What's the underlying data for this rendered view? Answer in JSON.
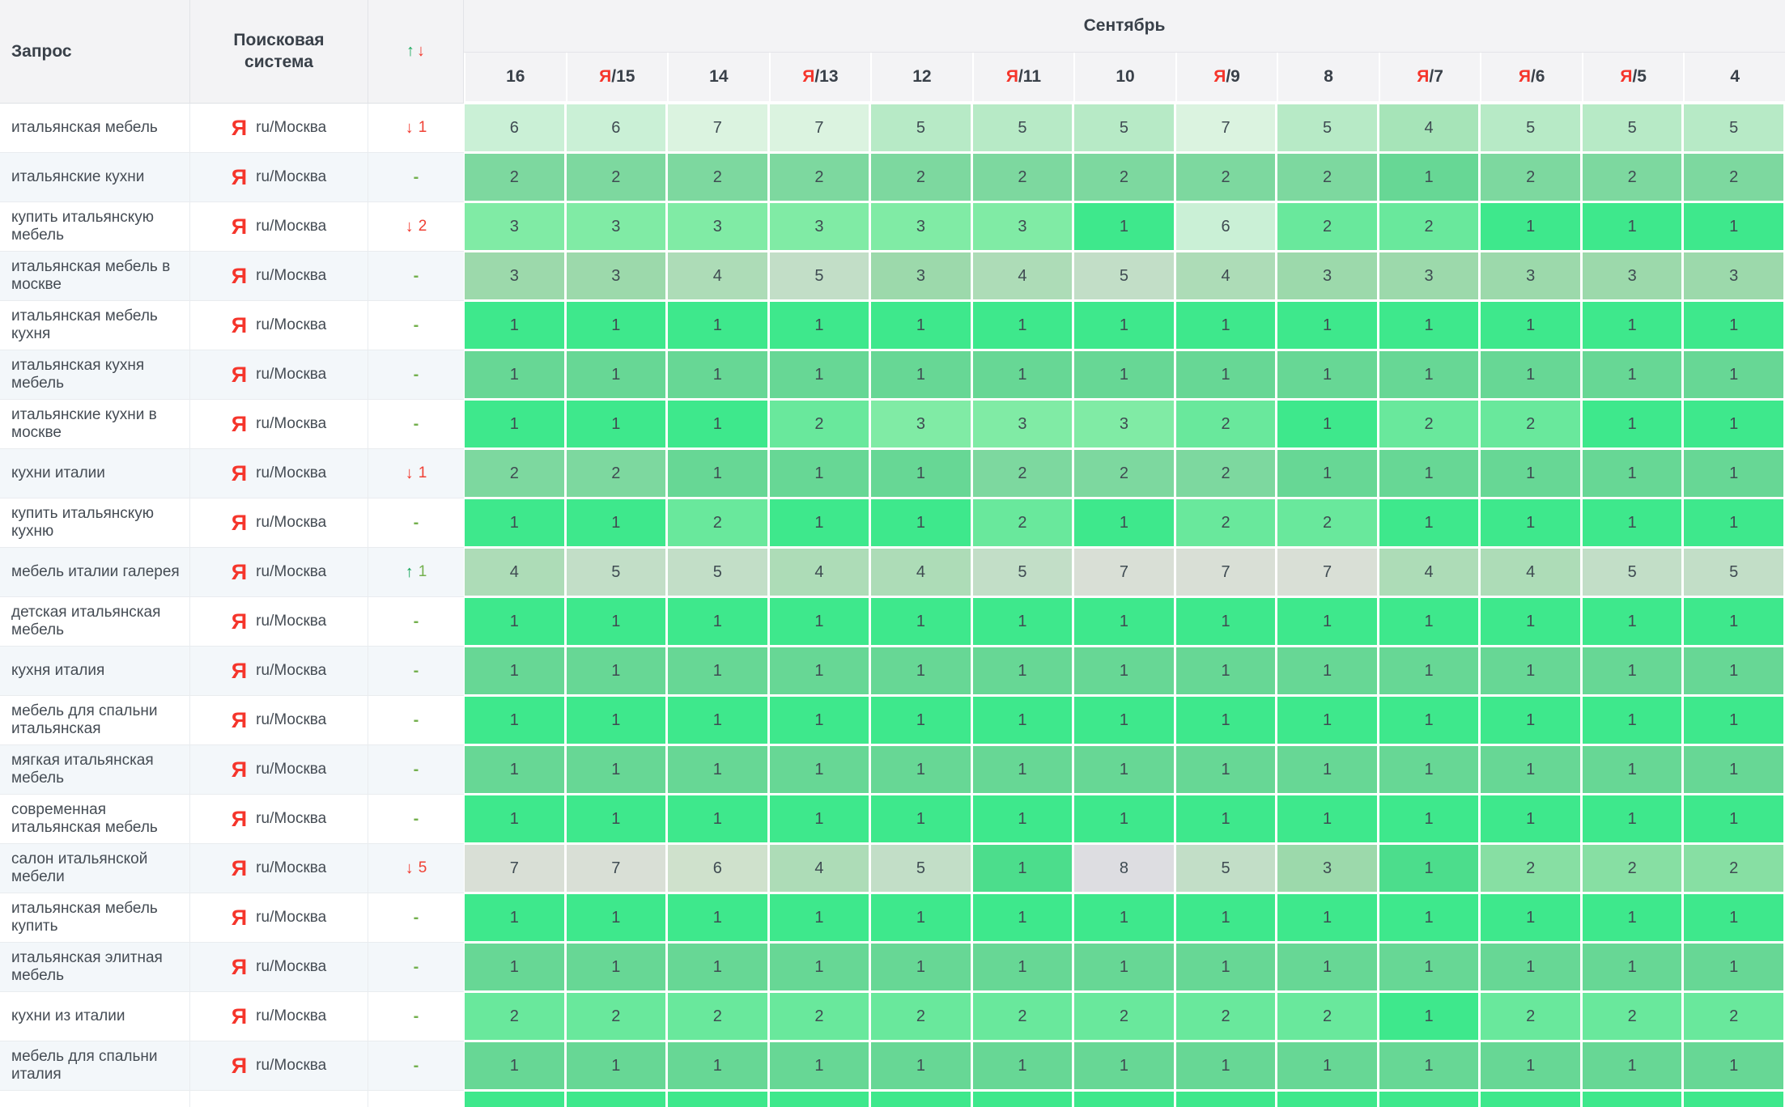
{
  "table": {
    "columns": {
      "query_label": "Запрос",
      "engine_label": "Поисковая система",
      "sort_up": "↑",
      "sort_down": "↓",
      "month_label": "Сентябрь",
      "dates": [
        {
          "ya": false,
          "day": "16"
        },
        {
          "ya": true,
          "day": "15"
        },
        {
          "ya": false,
          "day": "14"
        },
        {
          "ya": true,
          "day": "13"
        },
        {
          "ya": false,
          "day": "12"
        },
        {
          "ya": true,
          "day": "11"
        },
        {
          "ya": false,
          "day": "10"
        },
        {
          "ya": true,
          "day": "9"
        },
        {
          "ya": false,
          "day": "8"
        },
        {
          "ya": true,
          "day": "7"
        },
        {
          "ya": true,
          "day": "6"
        },
        {
          "ya": true,
          "day": "5"
        },
        {
          "ya": false,
          "day": "4"
        }
      ]
    },
    "engine": {
      "icon": "Я",
      "region": "ru/Москва"
    },
    "ui_colors": {
      "yandex_red": "#f5352b",
      "header_bg": "#f3f3f5",
      "header_text": "#394049",
      "stripe_bg": "#f3f7fa",
      "row_line": "#e9ecef",
      "up_green": "#16a85a",
      "down_red": "#f2392e",
      "dash_green": "#74b04e",
      "cell_text": "#3f4b52"
    },
    "palette_bright": {
      "1": "#3ee88c",
      "2": "#69e89c",
      "3": "#80eba5",
      "4": "#a6e4b8",
      "5": "#b7eac6",
      "6": "#caf0d6",
      "7": "#dbf3e0",
      "8": "#dcdcdf"
    },
    "palette_muted": {
      "1": "#67d795",
      "2": "#7dd89f",
      "3": "#9cd9ab",
      "4": "#addcb7",
      "5": "#c2dec7",
      "6": "#cfe1cc",
      "7": "#d9dfd6",
      "8": "#dddde1"
    },
    "rows": [
      {
        "query": "итальянская мебель",
        "tone": "bright",
        "change": {
          "dir": "down",
          "value": "1"
        },
        "values": [
          6,
          6,
          7,
          7,
          5,
          5,
          5,
          7,
          5,
          4,
          5,
          5,
          5
        ]
      },
      {
        "query": "итальянские кухни",
        "tone": "muted",
        "change": {
          "dir": "none",
          "value": "-"
        },
        "values": [
          2,
          2,
          2,
          2,
          2,
          2,
          2,
          2,
          2,
          1,
          2,
          2,
          2
        ]
      },
      {
        "query": "купить итальянскую мебель",
        "tone": "bright",
        "change": {
          "dir": "down",
          "value": "2"
        },
        "values": [
          3,
          3,
          3,
          3,
          3,
          3,
          1,
          6,
          2,
          2,
          1,
          1,
          1
        ]
      },
      {
        "query": "итальянская мебель в москве",
        "tone": "muted",
        "change": {
          "dir": "none",
          "value": "-"
        },
        "values": [
          3,
          3,
          4,
          5,
          3,
          4,
          5,
          4,
          3,
          3,
          3,
          3,
          3
        ]
      },
      {
        "query": "итальянская мебель кухня",
        "tone": "bright",
        "change": {
          "dir": "none",
          "value": "-"
        },
        "values": [
          1,
          1,
          1,
          1,
          1,
          1,
          1,
          1,
          1,
          1,
          1,
          1,
          1
        ]
      },
      {
        "query": "итальянская кухня мебель",
        "tone": "muted",
        "change": {
          "dir": "none",
          "value": "-"
        },
        "values": [
          1,
          1,
          1,
          1,
          1,
          1,
          1,
          1,
          1,
          1,
          1,
          1,
          1
        ]
      },
      {
        "query": "итальянские кухни в москве",
        "tone": "bright",
        "change": {
          "dir": "none",
          "value": "-"
        },
        "values": [
          1,
          1,
          1,
          2,
          3,
          3,
          3,
          2,
          1,
          2,
          2,
          1,
          1
        ]
      },
      {
        "query": "кухни италии",
        "tone": "muted",
        "change": {
          "dir": "down",
          "value": "1"
        },
        "values": [
          2,
          2,
          1,
          1,
          1,
          2,
          2,
          2,
          1,
          1,
          1,
          1,
          1
        ]
      },
      {
        "query": "купить итальянскую кухню",
        "tone": "bright",
        "change": {
          "dir": "none",
          "value": "-"
        },
        "values": [
          1,
          1,
          2,
          1,
          1,
          2,
          1,
          2,
          2,
          1,
          1,
          1,
          1
        ]
      },
      {
        "query": "мебель италии галерея",
        "tone": "muted",
        "change": {
          "dir": "up",
          "value": "1"
        },
        "values": [
          4,
          5,
          5,
          4,
          4,
          5,
          7,
          7,
          7,
          4,
          4,
          5,
          5
        ]
      },
      {
        "query": "детская итальянская мебель",
        "tone": "bright",
        "change": {
          "dir": "none",
          "value": "-"
        },
        "values": [
          1,
          1,
          1,
          1,
          1,
          1,
          1,
          1,
          1,
          1,
          1,
          1,
          1
        ]
      },
      {
        "query": "кухня италия",
        "tone": "muted",
        "change": {
          "dir": "none",
          "value": "-"
        },
        "values": [
          1,
          1,
          1,
          1,
          1,
          1,
          1,
          1,
          1,
          1,
          1,
          1,
          1
        ]
      },
      {
        "query": "мебель для спальни итальянская",
        "tone": "bright",
        "change": {
          "dir": "none",
          "value": "-"
        },
        "values": [
          1,
          1,
          1,
          1,
          1,
          1,
          1,
          1,
          1,
          1,
          1,
          1,
          1
        ]
      },
      {
        "query": "мягкая итальянская мебель",
        "tone": "muted",
        "change": {
          "dir": "none",
          "value": "-"
        },
        "values": [
          1,
          1,
          1,
          1,
          1,
          1,
          1,
          1,
          1,
          1,
          1,
          1,
          1
        ]
      },
      {
        "query": "современная итальянская мебель",
        "tone": "bright",
        "change": {
          "dir": "none",
          "value": "-"
        },
        "values": [
          1,
          1,
          1,
          1,
          1,
          1,
          1,
          1,
          1,
          1,
          1,
          1,
          1
        ]
      },
      {
        "query": "салон итальянской мебели",
        "tone": "muted",
        "change": {
          "dir": "down",
          "value": "5"
        },
        "values": [
          7,
          7,
          6,
          4,
          5,
          1,
          8,
          5,
          3,
          1,
          2,
          2,
          2
        ],
        "cell_colors": {
          "1": "#4cdd8c",
          "2": "#87dfa3"
        }
      },
      {
        "query": "итальянская мебель купить",
        "tone": "bright",
        "change": {
          "dir": "none",
          "value": "-"
        },
        "values": [
          1,
          1,
          1,
          1,
          1,
          1,
          1,
          1,
          1,
          1,
          1,
          1,
          1
        ]
      },
      {
        "query": "итальянская элитная мебель",
        "tone": "muted",
        "change": {
          "dir": "none",
          "value": "-"
        },
        "values": [
          1,
          1,
          1,
          1,
          1,
          1,
          1,
          1,
          1,
          1,
          1,
          1,
          1
        ]
      },
      {
        "query": "кухни из италии",
        "tone": "bright",
        "change": {
          "dir": "none",
          "value": "-"
        },
        "values": [
          2,
          2,
          2,
          2,
          2,
          2,
          2,
          2,
          2,
          1,
          2,
          2,
          2
        ]
      },
      {
        "query": "мебель для спальни италия",
        "tone": "muted",
        "change": {
          "dir": "none",
          "value": "-"
        },
        "values": [
          1,
          1,
          1,
          1,
          1,
          1,
          1,
          1,
          1,
          1,
          1,
          1,
          1
        ]
      }
    ],
    "partial_row": {
      "query": "",
      "tone": "bright"
    }
  }
}
